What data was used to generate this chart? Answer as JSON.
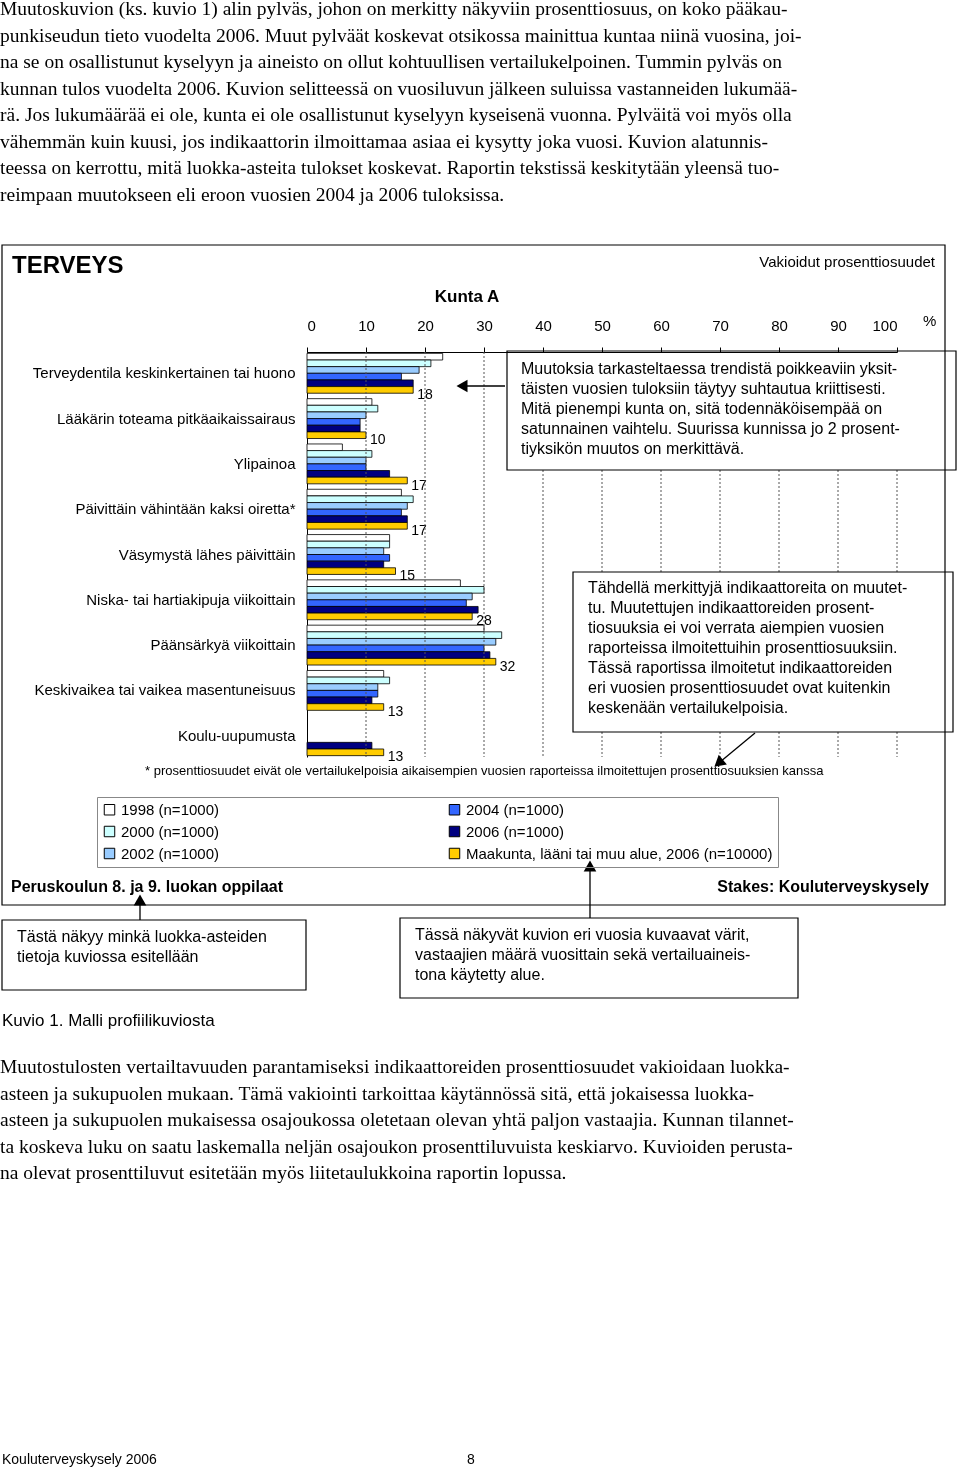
{
  "chart_data": {
    "type": "bar",
    "orientation": "horizontal",
    "title": "TERVEYS",
    "subtitle": "Vakioidut prosenttiosuudet",
    "xlabel": "Kunta A",
    "categories": [
      "Terveydentila keskinkertainen tai huono",
      "Lääkärin toteama pitkäaikaissairaus",
      "Ylipainoa",
      "Päivittäin vähintään kaksi oiretta*",
      "Väsymystä lähes päivittäin",
      "Niska- tai hartiakipuja viikoittain",
      "Päänsärkyä viikoittain",
      "Keskivaikea tai vaikea masentuneisuus",
      "Koulu-uupumusta"
    ],
    "series": [
      {
        "name": "1998 (n=1000)",
        "color": "#ffffff",
        "values": [
          23,
          11,
          6,
          16,
          14,
          26,
          30,
          13,
          null
        ]
      },
      {
        "name": "2000 (n=1000)",
        "color": "#ccffff",
        "values": [
          21,
          12,
          11,
          18,
          14,
          30,
          33,
          14,
          null
        ]
      },
      {
        "name": "2002 (n=1000)",
        "color": "#99ccff",
        "values": [
          19,
          10,
          10,
          17,
          13,
          28,
          32,
          12,
          null
        ]
      },
      {
        "name": "2004 (n=1000)",
        "color": "#3366ff",
        "values": [
          16,
          9,
          10,
          16,
          14,
          27,
          30,
          12,
          null
        ]
      },
      {
        "name": "2006 (n=1000)",
        "color": "#000080",
        "values": [
          18,
          9,
          14,
          17,
          13,
          29,
          31,
          11,
          11
        ]
      },
      {
        "name": "Maakunta, lääni tai muu alue, 2006 (n=10000)",
        "color": "#ffcc00",
        "values": [
          18,
          10,
          17,
          17,
          15,
          28,
          32,
          13,
          13
        ],
        "value_labels": [
          "18",
          "10",
          "17",
          "17",
          "15",
          "28",
          "32",
          "13",
          "13"
        ]
      }
    ],
    "xlim": [
      0,
      100
    ],
    "xticks": [
      0,
      10,
      20,
      30,
      40,
      50,
      60,
      70,
      80,
      90,
      100
    ],
    "grid": "x",
    "legend": "bottom",
    "annotations": [
      "Muutoskuvion (ks. kuvio 1) alin pylväs, johon on merkitty näkyviin prosenttiosuus, on koko pääkau-\npunkiseudun tieto vuodelta 2006. Muut pylväät koskevat otsikossa mainittua kuntaa niinä vuosina, joi-\nna se on osallistunut kyselyyn ja aineisto on ollut kohtuullisen vertailukelpoinen. Tummin pylväs on\nkunnan tulos vuodelta 2006. Kuvion selitteessä on vuosiluvun jälkeen suluissa vastanneiden lukumää-\nrä. Jos lukumäärää ei ole, kunta ei ole osallistunut kyselyyn kyseisenä vuonna. Pylväitä voi myös olla\nvähemmän kuin kuusi, jos indikaattorin ilmoittamaa asiaa ei kysytty joka vuosi. Kuvion alatunnis-\nteessa on kerrottu, mitä luokka-asteita tulokset koskevat. Raportin tekstissä keskitytään yleensä tuo-\nreimpaan muutokseen eli eroon vuosien 2004 ja 2006 tuloksissa.",
      "%",
      "Muutoksia tarkasteltaessa trendistä poikkeaviin yksit-\ntäisten vuosien tuloksiin täytyy suhtautua kriittisesti.\nMitä pienempi kunta on, sitä todennäköisempää on\nsatunnainen vaihtelu. Suurissa kunnissa jo 2 prosent-\ntiyksikön muutos on merkittävä.",
      "Tähdellä merkittyjä indikaattoreita on muutet-\ntu. Muutettujen indikaattoreiden prosent-\ntiosuuksia ei voi verrata aiempien vuosien\nraporteissa ilmoitettuihin prosenttiosuuksiin.\nTässä raportissa ilmoitetut indikaattoreiden\neri vuosien prosenttiosuudet ovat kuitenkin\nkeskenään vertailukelpoisia.",
      "* prosenttiosuudet eivät ole vertailukelpoisia aikaisempien vuosien raporteissa ilmoitettujen prosenttiosuuksien kanssa",
      "Peruskoulun 8. ja 9. luokan oppilaat",
      "Stakes: Kouluterveyskysely",
      "Tästä näkyy minkä luokka-asteiden\ntietoja kuviossa esitellään",
      "Tässä näkyvät kuvion eri vuosia kuvaavat värit,\nvastaajien määrä vuosittain sekä vertailuaineis-\ntona käytetty alue.",
      "Kuvio 1. Malli profiilikuviosta",
      "Muutostulosten vertailtavuuden parantamiseksi indikaattoreiden prosenttiosuudet vakioidaan luokka-\nasteen ja sukupuolen mukaan. Tämä vakiointi tarkoittaa käytännössä sitä, että jokaisessa luokka-\nasteen ja sukupuolen mukaisessa osajoukossa oletetaan olevan yhtä paljon vastaajia. Kunnan tilannet-\nta koskeva luku on saatu laskemalla neljän osajoukon prosenttiluvuista keskiarvo. Kuvioiden perusta-\nna olevat prosenttiluvut esitetään myös liitetaulukkoina raportin lopussa.",
      "Kouluterveyskysely 2006",
      "8"
    ]
  }
}
